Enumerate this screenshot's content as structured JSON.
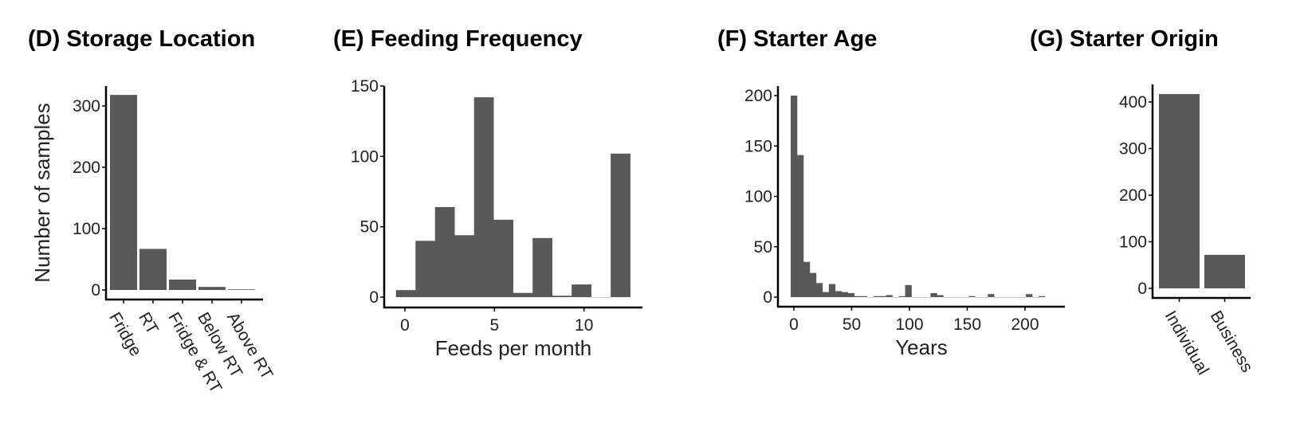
{
  "bar_color": "#595959",
  "chart_data": [
    {
      "panel": "D",
      "type": "bar",
      "title": "(D) Storage Location",
      "xlabel": "",
      "ylabel": "Number of samples",
      "categories": [
        "Fridge",
        "RT",
        "Fridge & RT",
        "Below RT",
        "Above RT"
      ],
      "values": [
        318,
        67,
        17,
        5,
        1
      ],
      "yticks": [
        0,
        100,
        200,
        300
      ],
      "ylim": [
        0,
        330
      ],
      "grid": false
    },
    {
      "panel": "E",
      "type": "bar",
      "histogram": true,
      "title": "(E) Feeding Frequency",
      "xlabel": "Feeds per month",
      "ylabel": "",
      "bin_start": -0.5,
      "bin_width": 1.09,
      "values": [
        5,
        40,
        64,
        44,
        142,
        55,
        3,
        42,
        1,
        9,
        0,
        102
      ],
      "xticks": [
        0,
        5,
        10
      ],
      "yticks": [
        0,
        50,
        100,
        150
      ],
      "xlim": [
        -1.2,
        13.5
      ],
      "ylim": [
        0,
        150
      ],
      "grid": false
    },
    {
      "panel": "F",
      "type": "bar",
      "histogram": true,
      "title": "(F)  Starter Age",
      "xlabel": "Years",
      "ylabel": "",
      "bin_start": -2.75,
      "bin_width": 5.5,
      "values": [
        200,
        141,
        35,
        24,
        14,
        5,
        13,
        6,
        5,
        4,
        1,
        1,
        0,
        1,
        1,
        2,
        0,
        1,
        12,
        0,
        0,
        0,
        4,
        2,
        0,
        0,
        0,
        0,
        1,
        0,
        0,
        3,
        0,
        0,
        0,
        0,
        0,
        3,
        0,
        1
      ],
      "xticks": [
        0,
        50,
        100,
        150,
        200
      ],
      "yticks": [
        0,
        50,
        100,
        150,
        200
      ],
      "xlim": [
        -13.8,
        234
      ],
      "ylim": [
        0,
        210
      ],
      "grid": false
    },
    {
      "panel": "G",
      "type": "bar",
      "title": "(G)  Starter Origin",
      "xlabel": "",
      "ylabel": "",
      "categories": [
        "Individual",
        "Business"
      ],
      "values": [
        417,
        72
      ],
      "yticks": [
        0,
        100,
        200,
        300,
        400
      ],
      "ylim": [
        0,
        440
      ],
      "grid": false
    }
  ]
}
